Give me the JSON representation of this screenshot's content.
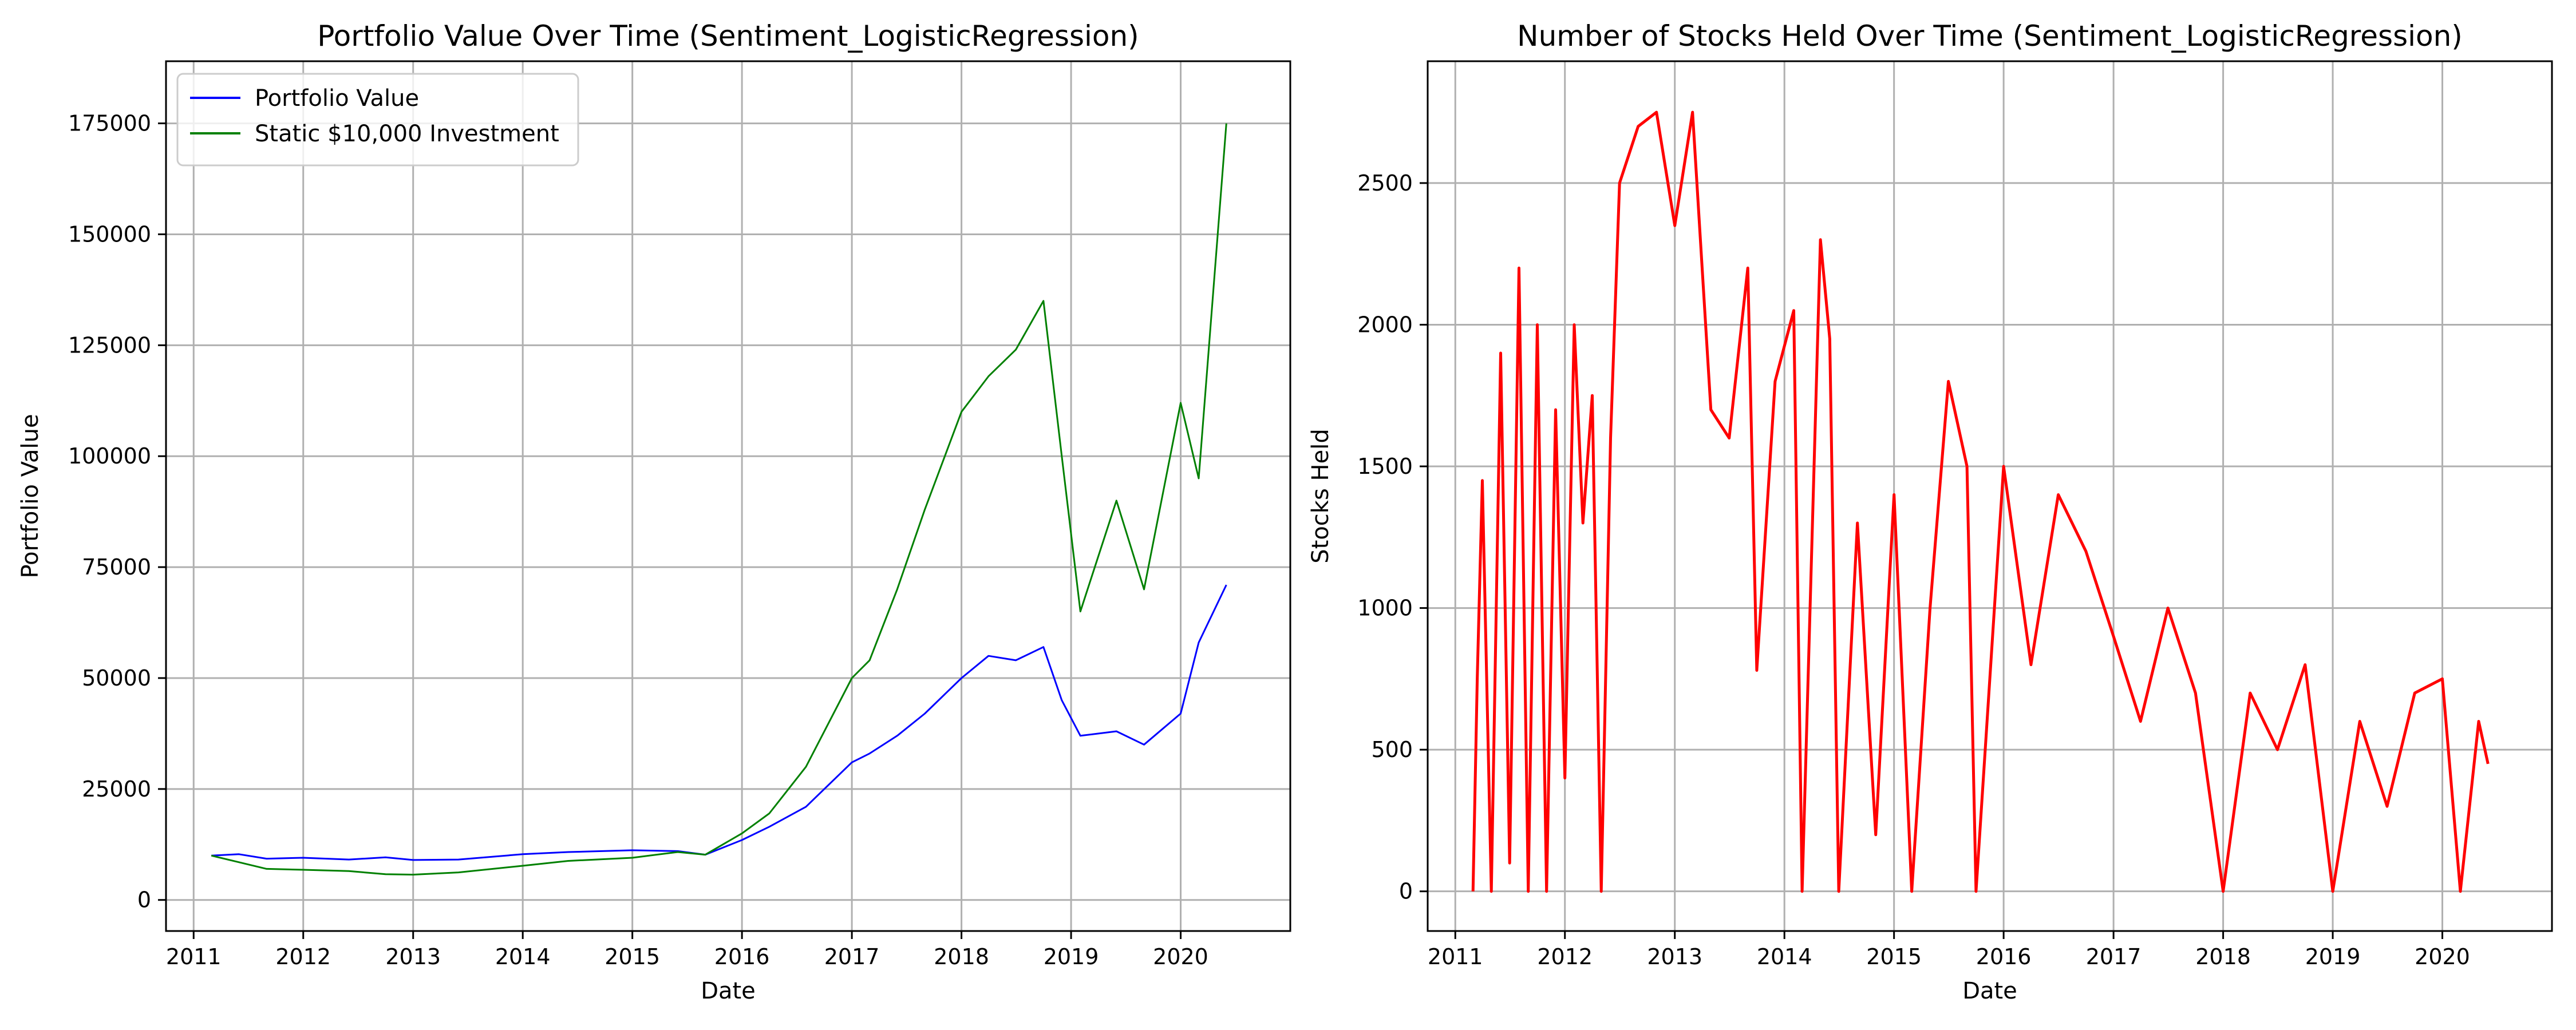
{
  "chart_data": [
    {
      "type": "line",
      "title": "Portfolio Value Over Time (Sentiment_LogisticRegression)",
      "xlabel": "Date",
      "ylabel": "Portfolio Value",
      "x_type": "date",
      "xlim": [
        "2010-10-01",
        "2020-12-31"
      ],
      "ylim": [
        -7000,
        189000
      ],
      "xticks": [
        "2011",
        "2012",
        "2013",
        "2014",
        "2015",
        "2016",
        "2017",
        "2018",
        "2019",
        "2020"
      ],
      "yticks": [
        0,
        25000,
        50000,
        75000,
        100000,
        125000,
        150000,
        175000
      ],
      "grid": true,
      "legend": "upper-left",
      "series": [
        {
          "name": "Portfolio Value",
          "color": "#0000ff",
          "points": [
            [
              "2011-03-01",
              10000
            ],
            [
              "2011-06-01",
              10300
            ],
            [
              "2011-09-01",
              9300
            ],
            [
              "2012-01-01",
              9500
            ],
            [
              "2012-06-01",
              9100
            ],
            [
              "2012-10-01",
              9600
            ],
            [
              "2013-01-01",
              9000
            ],
            [
              "2013-06-01",
              9100
            ],
            [
              "2014-01-01",
              10300
            ],
            [
              "2014-06-01",
              10800
            ],
            [
              "2015-01-01",
              11200
            ],
            [
              "2015-06-01",
              11000
            ],
            [
              "2015-09-01",
              10200
            ],
            [
              "2016-01-01",
              13500
            ],
            [
              "2016-04-01",
              16500
            ],
            [
              "2016-08-01",
              21000
            ],
            [
              "2017-01-01",
              31000
            ],
            [
              "2017-03-01",
              33000
            ],
            [
              "2017-06-01",
              37000
            ],
            [
              "2017-09-01",
              42000
            ],
            [
              "2018-01-01",
              50000
            ],
            [
              "2018-04-01",
              55000
            ],
            [
              "2018-07-01",
              54000
            ],
            [
              "2018-10-01",
              57000
            ],
            [
              "2018-12-01",
              45000
            ],
            [
              "2019-02-01",
              37000
            ],
            [
              "2019-06-01",
              38000
            ],
            [
              "2019-09-01",
              35000
            ],
            [
              "2020-01-01",
              42000
            ],
            [
              "2020-03-01",
              58000
            ],
            [
              "2020-06-01",
              71000
            ]
          ]
        },
        {
          "name": "Static $10,000 Investment",
          "color": "#008000",
          "points": [
            [
              "2011-03-01",
              10000
            ],
            [
              "2011-06-01",
              8500
            ],
            [
              "2011-09-01",
              7000
            ],
            [
              "2012-01-01",
              6800
            ],
            [
              "2012-06-01",
              6500
            ],
            [
              "2012-10-01",
              5800
            ],
            [
              "2013-01-01",
              5700
            ],
            [
              "2013-06-01",
              6200
            ],
            [
              "2014-01-01",
              7700
            ],
            [
              "2014-06-01",
              8800
            ],
            [
              "2015-01-01",
              9500
            ],
            [
              "2015-06-01",
              10800
            ],
            [
              "2015-09-01",
              10200
            ],
            [
              "2016-01-01",
              15000
            ],
            [
              "2016-04-01",
              19500
            ],
            [
              "2016-08-01",
              30000
            ],
            [
              "2017-01-01",
              50000
            ],
            [
              "2017-03-01",
              54000
            ],
            [
              "2017-06-01",
              70000
            ],
            [
              "2017-09-01",
              88000
            ],
            [
              "2018-01-01",
              110000
            ],
            [
              "2018-04-01",
              118000
            ],
            [
              "2018-07-01",
              124000
            ],
            [
              "2018-10-01",
              135000
            ],
            [
              "2018-12-01",
              100000
            ],
            [
              "2019-02-01",
              65000
            ],
            [
              "2019-06-01",
              90000
            ],
            [
              "2019-09-01",
              70000
            ],
            [
              "2020-01-01",
              112000
            ],
            [
              "2020-03-01",
              95000
            ],
            [
              "2020-06-01",
              175000
            ]
          ]
        }
      ]
    },
    {
      "type": "line",
      "title": "Number of Stocks Held Over Time (Sentiment_LogisticRegression)",
      "xlabel": "Date",
      "ylabel": "Stocks Held",
      "x_type": "date",
      "xlim": [
        "2010-10-01",
        "2020-12-31"
      ],
      "ylim": [
        -140,
        2930
      ],
      "xticks": [
        "2011",
        "2012",
        "2013",
        "2014",
        "2015",
        "2016",
        "2017",
        "2018",
        "2019",
        "2020"
      ],
      "yticks": [
        0,
        500,
        1000,
        1500,
        2000,
        2500
      ],
      "grid": true,
      "series": [
        {
          "color": "#ff0000",
          "points": [
            [
              "2011-03-01",
              0
            ],
            [
              "2011-03-15",
              750
            ],
            [
              "2011-04-01",
              1450
            ],
            [
              "2011-05-01",
              0
            ],
            [
              "2011-06-01",
              1900
            ],
            [
              "2011-07-01",
              100
            ],
            [
              "2011-08-01",
              2200
            ],
            [
              "2011-09-01",
              0
            ],
            [
              "2011-10-01",
              2000
            ],
            [
              "2011-11-01",
              0
            ],
            [
              "2011-12-01",
              1700
            ],
            [
              "2012-01-01",
              400
            ],
            [
              "2012-02-01",
              2000
            ],
            [
              "2012-03-01",
              1300
            ],
            [
              "2012-04-01",
              1750
            ],
            [
              "2012-05-01",
              0
            ],
            [
              "2012-06-01",
              1600
            ],
            [
              "2012-07-01",
              2500
            ],
            [
              "2012-09-01",
              2700
            ],
            [
              "2012-11-01",
              2750
            ],
            [
              "2013-01-01",
              2350
            ],
            [
              "2013-03-01",
              2750
            ],
            [
              "2013-05-01",
              1700
            ],
            [
              "2013-07-01",
              1600
            ],
            [
              "2013-09-01",
              2200
            ],
            [
              "2013-10-01",
              780
            ],
            [
              "2013-12-01",
              1800
            ],
            [
              "2014-02-01",
              2050
            ],
            [
              "2014-03-01",
              0
            ],
            [
              "2014-05-01",
              2300
            ],
            [
              "2014-06-01",
              1950
            ],
            [
              "2014-07-01",
              0
            ],
            [
              "2014-09-01",
              1300
            ],
            [
              "2014-11-01",
              200
            ],
            [
              "2015-01-01",
              1400
            ],
            [
              "2015-03-01",
              0
            ],
            [
              "2015-05-01",
              1000
            ],
            [
              "2015-07-01",
              1800
            ],
            [
              "2015-09-01",
              1500
            ],
            [
              "2015-10-01",
              0
            ],
            [
              "2016-01-01",
              1500
            ],
            [
              "2016-04-01",
              800
            ],
            [
              "2016-07-01",
              1400
            ],
            [
              "2016-10-01",
              1200
            ],
            [
              "2017-01-01",
              900
            ],
            [
              "2017-04-01",
              600
            ],
            [
              "2017-07-01",
              1000
            ],
            [
              "2017-10-01",
              700
            ],
            [
              "2018-01-01",
              0
            ],
            [
              "2018-04-01",
              700
            ],
            [
              "2018-07-01",
              500
            ],
            [
              "2018-10-01",
              800
            ],
            [
              "2019-01-01",
              0
            ],
            [
              "2019-04-01",
              600
            ],
            [
              "2019-07-01",
              300
            ],
            [
              "2019-10-01",
              700
            ],
            [
              "2020-01-01",
              750
            ],
            [
              "2020-03-01",
              0
            ],
            [
              "2020-05-01",
              600
            ],
            [
              "2020-06-01",
              450
            ]
          ]
        }
      ]
    }
  ]
}
